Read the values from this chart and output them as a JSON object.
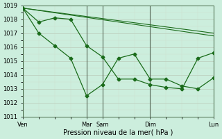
{
  "bg_color": "#cceedd",
  "grid_major_color": "#bbddcc",
  "grid_minor_color": "#ddeecc",
  "line_color": "#1a6b1a",
  "xlabel": "Pression niveau de la mer( hPa )",
  "ylim": [
    1011,
    1019
  ],
  "yticks": [
    1011,
    1012,
    1013,
    1014,
    1015,
    1016,
    1017,
    1018,
    1019
  ],
  "xtick_positions": [
    0,
    24,
    30,
    48,
    72
  ],
  "xtick_labels": [
    "Ven",
    "Mar",
    "Sam",
    "Dim",
    "Lun"
  ],
  "vline_positions": [
    0,
    24,
    30,
    48,
    72
  ],
  "trend1": {
    "x": [
      0,
      72
    ],
    "y": [
      1018.8,
      1016.8
    ]
  },
  "trend2": {
    "x": [
      0,
      72
    ],
    "y": [
      1018.8,
      1017.0
    ]
  },
  "line1_x": [
    0,
    6,
    12,
    18,
    24,
    30,
    36,
    42,
    48,
    54,
    60,
    66,
    72
  ],
  "line1_y": [
    1018.8,
    1017.8,
    1018.1,
    1018.0,
    1016.1,
    1015.3,
    1013.7,
    1013.7,
    1013.3,
    1013.1,
    1013.0,
    1015.2,
    1015.6
  ],
  "line2_x": [
    0,
    6,
    12,
    18,
    24,
    30,
    36,
    42,
    48,
    54,
    60,
    66,
    72
  ],
  "line2_y": [
    1018.8,
    1017.0,
    1016.1,
    1015.2,
    1012.5,
    1013.3,
    1015.2,
    1015.5,
    1013.7,
    1013.7,
    1013.2,
    1013.0,
    1013.8
  ]
}
